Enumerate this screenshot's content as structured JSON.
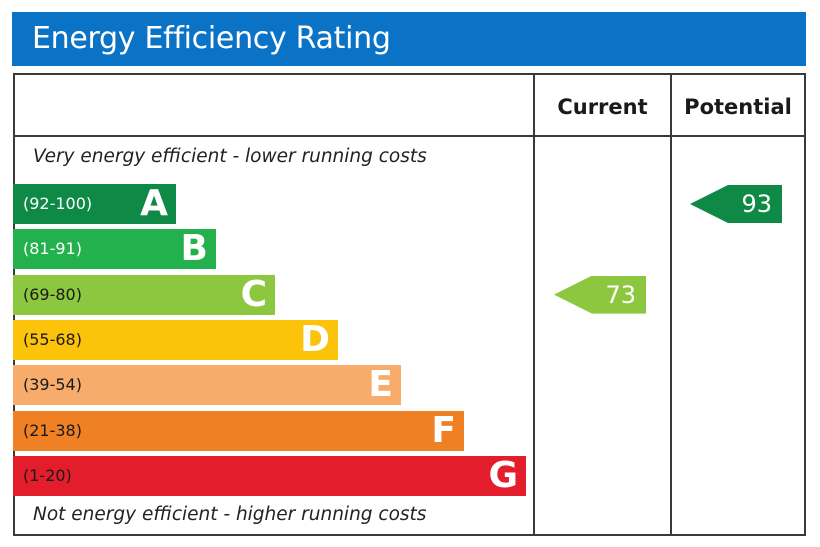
{
  "title": "Energy Efficiency Rating",
  "columns": {
    "current": "Current",
    "potential": "Potential"
  },
  "top_note": "Very energy efficient - lower running costs",
  "bottom_note": "Not energy efficient - higher running costs",
  "chart_data": {
    "type": "bar",
    "categories": [
      "A",
      "B",
      "C",
      "D",
      "E",
      "F",
      "G"
    ],
    "ranges": [
      "(92-100)",
      "(81-91)",
      "(69-80)",
      "(55-68)",
      "(39-54)",
      "(21-38)",
      "(1-20)"
    ],
    "colors": [
      "#0f8a46",
      "#22b14c",
      "#8dc63f",
      "#fcc30b",
      "#f7ac6c",
      "#ef8023",
      "#e31d2b"
    ],
    "range_text_colors": [
      "#ffffff",
      "#ffffff",
      "#1a1a1a",
      "#1a1a1a",
      "#1a1a1a",
      "#1a1a1a",
      "#1a1a1a"
    ],
    "current": {
      "value": 73,
      "band": "C",
      "color": "#8dc63f"
    },
    "potential": {
      "value": 93,
      "band": "A",
      "color": "#0f8a46"
    }
  }
}
